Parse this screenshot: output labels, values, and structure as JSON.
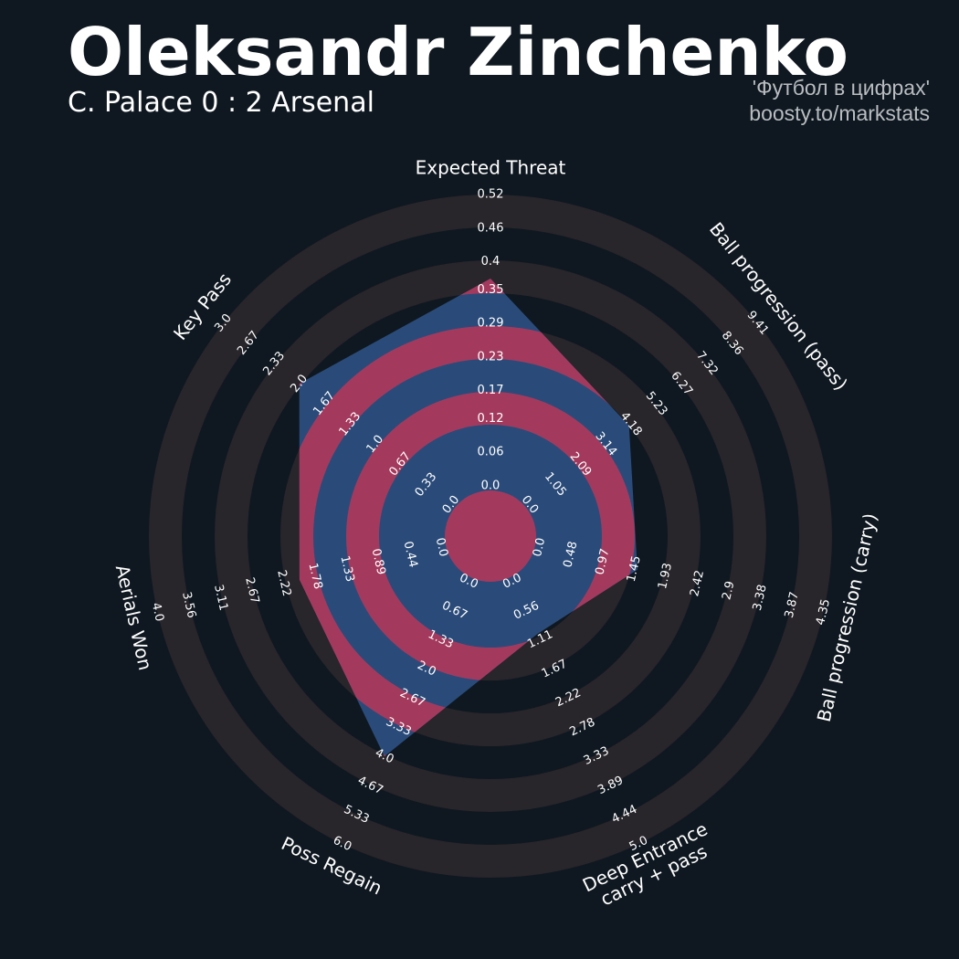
{
  "chart_data": {
    "type": "radar",
    "title": "Oleksandr Zinchenko",
    "subtitle": "C. Palace 0 : 2 Arsenal",
    "credits": [
      "'Футбол в цифрах'",
      "boosty.to/markstats"
    ],
    "ring_color": "#28252b",
    "color": "#2a4b79",
    "overlap_color": "#a33a5e",
    "axes": [
      {
        "name": "Expected Threat",
        "lim": [
          0,
          0.52
        ],
        "ticks": [
          {
            "value": 0,
            "label": "0.0"
          },
          0.06,
          0.12,
          0.17,
          0.23,
          0.29,
          0.35,
          0.4,
          0.46,
          0.52
        ]
      },
      {
        "name": "Ball progression (pass)",
        "lim": [
          0,
          9.41
        ],
        "ticks": [
          {
            "value": 0,
            "label": "0.0"
          },
          1.05,
          2.09,
          3.14,
          4.18,
          5.23,
          6.27,
          7.32,
          8.36,
          9.41
        ]
      },
      {
        "name": "Ball progression (carry)",
        "lim": [
          0,
          4.35
        ],
        "ticks": [
          {
            "value": 0,
            "label": "0.0"
          },
          0.48,
          0.97,
          1.45,
          1.93,
          2.42,
          2.9,
          3.38,
          3.87,
          4.35
        ]
      },
      {
        "name": "Deep Entrance\ncarry + pass",
        "lim": [
          0,
          5
        ],
        "ticks": [
          {
            "value": 0,
            "label": "0.0"
          },
          0.56,
          1.11,
          1.67,
          2.22,
          2.78,
          3.33,
          3.89,
          4.44,
          {
            "value": 5,
            "label": "5.0"
          }
        ]
      },
      {
        "name": "Poss Regain",
        "lim": [
          0,
          6
        ],
        "ticks": [
          {
            "value": 0,
            "label": "0.0"
          },
          0.67,
          1.33,
          {
            "value": 2,
            "label": "2.0"
          },
          2.67,
          3.33,
          {
            "value": 4,
            "label": "4.0"
          },
          4.67,
          5.33,
          {
            "value": 6,
            "label": "6.0"
          }
        ]
      },
      {
        "name": "Aerials Won",
        "lim": [
          0,
          4
        ],
        "ticks": [
          {
            "value": 0,
            "label": "0.0"
          },
          0.44,
          0.89,
          1.33,
          1.78,
          2.22,
          2.67,
          3.11,
          3.56,
          {
            "value": 4,
            "label": "4.0"
          }
        ]
      },
      {
        "name": "Key Pass",
        "lim": [
          0,
          3
        ],
        "ticks": [
          {
            "value": 0,
            "label": "0.0"
          },
          0.33,
          0.67,
          {
            "value": 1,
            "label": "1.0"
          },
          1.33,
          1.67,
          {
            "value": 2,
            "label": "2.0"
          },
          2.33,
          2.67,
          {
            "value": 3,
            "label": "3.0"
          }
        ]
      }
    ],
    "values": [
      0.37,
      4.1,
      1.5,
      1,
      4,
      2,
      2
    ]
  }
}
